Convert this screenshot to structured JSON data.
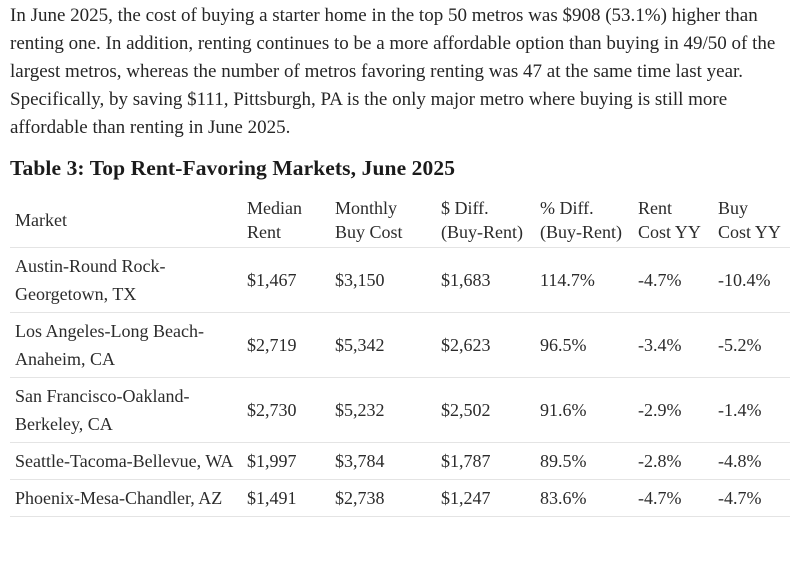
{
  "intro": {
    "text": "In June 2025, the cost of buying a starter home in the top 50 metros was $908 (53.1%) higher than renting one. In addition, renting continues to be a more affordable option than buying in 49/50 of the largest metros, whereas the number of metros favoring renting was 47 at the same time last year. Specifically, by saving $111, Pittsburgh, PA is the only major metro where buying is still more affordable than renting in June 2025."
  },
  "table": {
    "title": "Table 3: Top Rent-Favoring Markets, June 2025",
    "columns": [
      "Market",
      "Median Rent",
      "Monthly Buy Cost",
      "$ Diff. (Buy-Rent)",
      "% Diff. (Buy-Rent)",
      "Rent Cost YY",
      "Buy Cost YY"
    ],
    "rows": [
      [
        "Austin-Round Rock-Georgetown, TX",
        "$1,467",
        "$3,150",
        "$1,683",
        "114.7%",
        "-4.7%",
        "-10.4%"
      ],
      [
        "Los Angeles-Long Beach-Anaheim, CA",
        "$2,719",
        "$5,342",
        "$2,623",
        "96.5%",
        "-3.4%",
        "-5.2%"
      ],
      [
        "San Francisco-Oakland-Berkeley, CA",
        "$2,730",
        "$5,232",
        "$2,502",
        "91.6%",
        "-2.9%",
        "-1.4%"
      ],
      [
        "Seattle-Tacoma-Bellevue, WA",
        "$1,997",
        "$3,784",
        "$1,787",
        "89.5%",
        "-2.8%",
        "-4.8%"
      ],
      [
        "Phoenix-Mesa-Chandler, AZ",
        "$1,491",
        "$2,738",
        "$1,247",
        "83.6%",
        "-4.7%",
        "-4.7%"
      ]
    ]
  },
  "colors": {
    "text": "#262626",
    "heading": "#1b1b1b",
    "divider": "#e4e4e4",
    "background": "#ffffff"
  }
}
